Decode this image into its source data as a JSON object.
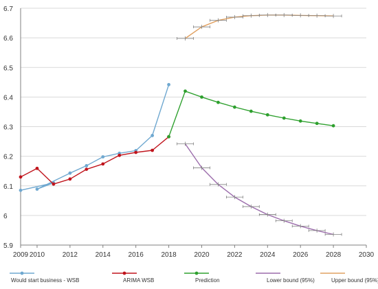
{
  "chart_data": {
    "type": "line",
    "title": "",
    "xlabel": "",
    "ylabel": "",
    "xlim": [
      2009,
      2030
    ],
    "ylim": [
      5.9,
      6.7
    ],
    "grid": "horizontal",
    "legend_position": "bottom",
    "x_ticks": [
      "2009",
      "2010",
      "2012",
      "2014",
      "2016",
      "2018",
      "2020",
      "2022",
      "2024",
      "2026",
      "2028",
      "2030"
    ],
    "y_ticks": [
      "5.9",
      "6",
      "6.1",
      "6.2",
      "6.3",
      "6.4",
      "6.5",
      "6.6",
      "6.7"
    ],
    "series": [
      {
        "name": "Would start business - WSB",
        "color": "#6fa8d0",
        "marker": "circle",
        "x": [
          2009,
          2011,
          2010,
          2012,
          2013,
          2014,
          2015,
          2016,
          2017,
          2018
        ],
        "y": [
          6.085,
          6.11,
          6.089,
          6.143,
          6.168,
          6.198,
          6.21,
          6.219,
          6.27,
          6.442
        ]
      },
      {
        "name": "ARIMA WSB",
        "color": "#c0141c",
        "marker": "circle",
        "x": [
          2009,
          2010,
          2011,
          2012,
          2013,
          2014,
          2015,
          2016,
          2017,
          2018
        ],
        "y": [
          6.13,
          6.159,
          6.106,
          6.123,
          6.156,
          6.174,
          6.203,
          6.213,
          6.22,
          6.266
        ]
      },
      {
        "name": "Prediction",
        "color": "#2ea02e",
        "marker": "circle",
        "x": [
          2018,
          2019,
          2020,
          2021,
          2022,
          2023,
          2024,
          2025,
          2026,
          2027,
          2028
        ],
        "y": [
          6.266,
          6.42,
          6.4,
          6.382,
          6.366,
          6.352,
          6.34,
          6.329,
          6.319,
          6.311,
          6.303
        ]
      },
      {
        "name": "Lower bound (95%)",
        "color": "#9b6cab",
        "marker": "none",
        "error_bars": true,
        "x": [
          2019,
          2020,
          2021,
          2022,
          2023,
          2024,
          2025,
          2026,
          2027,
          2028
        ],
        "y": [
          6.242,
          6.161,
          6.105,
          6.062,
          6.03,
          6.003,
          5.982,
          5.964,
          5.949,
          5.936
        ]
      },
      {
        "name": "Upper bound (95%)",
        "color": "#e0a060",
        "marker": "none",
        "error_bars": true,
        "x": [
          2019,
          2020,
          2021,
          2022,
          2023,
          2024,
          2025,
          2026,
          2027,
          2028
        ],
        "y": [
          6.598,
          6.637,
          6.659,
          6.67,
          6.675,
          6.677,
          6.677,
          6.676,
          6.675,
          6.674
        ]
      }
    ]
  }
}
